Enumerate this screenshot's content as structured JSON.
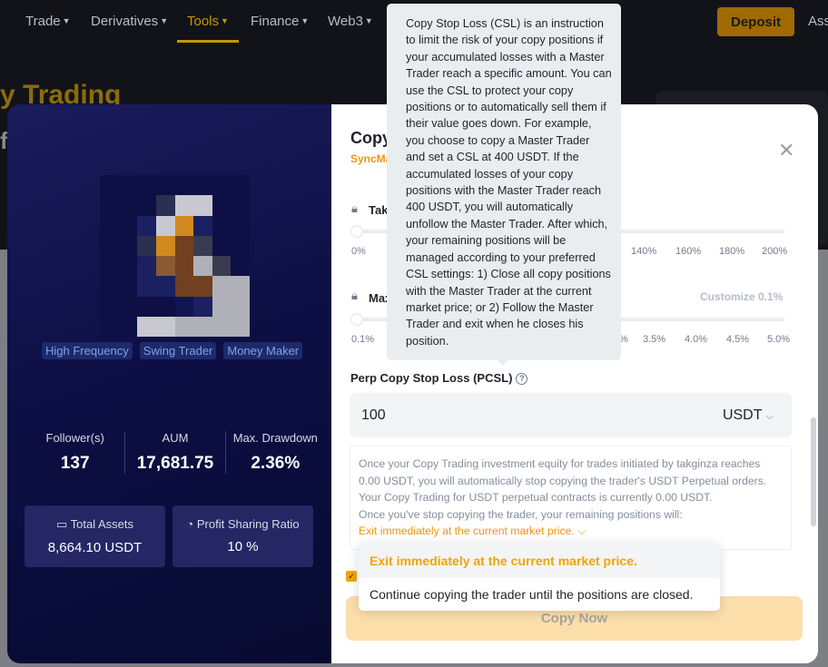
{
  "nav": {
    "items": [
      "Trade",
      "Derivatives",
      "Tools",
      "Finance",
      "Web3"
    ],
    "active": "Tools",
    "deposit": "Deposit",
    "assets": "Ass"
  },
  "hero": {
    "title": "y Trading",
    "fragment": "f"
  },
  "trader": {
    "tags": [
      "High Frequency",
      "Swing Trader",
      "Money Maker"
    ],
    "stats": [
      {
        "label": "Follower(s)",
        "value": "137"
      },
      {
        "label": "AUM",
        "value": "17,681.75"
      },
      {
        "label": "Max. Drawdown",
        "value": "2.36%"
      }
    ],
    "total_assets": {
      "label": "Total Assets",
      "value": "8,664.10 USDT",
      "icon": "wallet-icon"
    },
    "profit_sharing": {
      "label": "Profit Sharing Ratio",
      "value": "10 %",
      "icon": "pie-chart-icon"
    }
  },
  "form": {
    "title": "Copy",
    "subtitle": "SyncMa",
    "take_profit": {
      "label": "Tak",
      "ticks_left": [
        "0%"
      ],
      "ticks_right": [
        "140%",
        "160%",
        "180%",
        "200%"
      ],
      "value": 0
    },
    "max_loss": {
      "label": "Max",
      "customize": "Customize 0.1%",
      "ticks_left": [
        "0.1%"
      ],
      "ticks_right": [
        "%",
        "3.5%",
        "4.0%",
        "4.5%",
        "5.0%"
      ],
      "value": 0
    },
    "pcsl": {
      "label": "Perp Copy Stop Loss (PCSL)",
      "value": "100",
      "unit": "USDT"
    },
    "info": {
      "lines": [
        "Once your Copy Trading investment equity for trades initiated by takginza reaches 0.00 USDT, you will automatically stop copying the trader's USDT Perpetual orders.",
        "Your Copy Trading for USDT perpetual contracts is currently 0.00 USDT.",
        "Once you've stop copying the trader, your remaining positions will:"
      ],
      "selected": "Exit immediately at the current market price."
    },
    "copy_now": "Copy Now"
  },
  "dropdown": {
    "options": [
      "Exit immediately at the current market price.",
      "Continue copying the trader until the positions are closed."
    ],
    "selected": 0
  },
  "tooltip": {
    "text": "Copy Stop Loss (CSL) is an instruction to limit the risk of your copy positions if your accumulated losses with a Master Trader reach a specific amount. You can use the CSL to protect your copy positions or to automatically sell them if their value goes down. For example, you choose to copy a Master Trader and set a CSL at 400 USDT. If the accumulated losses of your copy positions with the Master Trader reach 400 USDT, you will automatically unfollow the Master Trader. After which, your remaining positions will be managed according to your preferred CSL settings: 1) Close all copy positions with the Master Trader at the current market price; or 2) Follow the Master Trader and exit when he closes his position."
  },
  "colors": {
    "accent": "#f0a500",
    "panel": "#0d0f45"
  }
}
